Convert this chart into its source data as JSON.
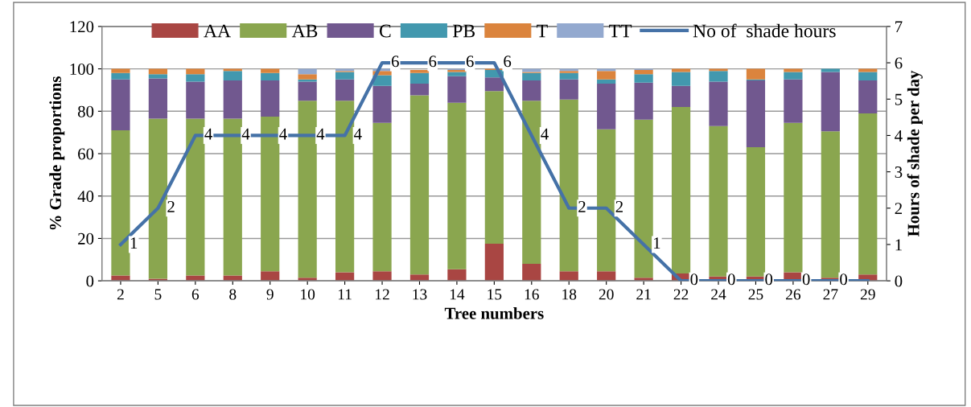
{
  "chart_data": {
    "type": "bar",
    "stacked": true,
    "xlabel": "Tree numbers",
    "ylabel": "% Grade proportions",
    "y2label": "Hours of shade per day",
    "categories": [
      "2",
      "5",
      "6",
      "8",
      "9",
      "10",
      "11",
      "12",
      "13",
      "14",
      "15",
      "16",
      "18",
      "20",
      "21",
      "22",
      "24",
      "25",
      "26",
      "27",
      "29"
    ],
    "series": [
      {
        "name": "AA",
        "color": "#a94643",
        "values": [
          2.5,
          1,
          2.5,
          2.5,
          4.5,
          1.5,
          4,
          4.5,
          3,
          5.5,
          17.5,
          8,
          4.5,
          4.5,
          1.5,
          3.5,
          2,
          2,
          4,
          1.5,
          3
        ]
      },
      {
        "name": "AB",
        "color": "#8aa64f",
        "values": [
          68.5,
          75.5,
          74,
          74,
          73,
          83.5,
          81,
          70,
          84.5,
          78.5,
          72,
          77,
          81,
          67,
          74.5,
          78.5,
          71,
          61,
          70.5,
          69,
          76
        ]
      },
      {
        "name": "C",
        "color": "#71588f",
        "values": [
          24,
          19,
          17.5,
          18,
          17,
          9,
          10,
          17.5,
          5.5,
          12.5,
          6.5,
          9.5,
          9.5,
          21.5,
          17.5,
          10,
          21,
          31.5,
          20.5,
          28,
          15.5
        ]
      },
      {
        "name": "PB",
        "color": "#4298ae",
        "values": [
          3,
          2,
          3.5,
          4.5,
          3.5,
          1,
          3.5,
          5,
          5,
          2,
          3.5,
          3.5,
          3,
          2,
          4,
          6.5,
          5,
          0.5,
          3.5,
          1.5,
          4
        ]
      },
      {
        "name": "T",
        "color": "#db843d",
        "values": [
          2,
          2.5,
          2.5,
          1,
          2,
          2.5,
          0.5,
          2,
          1.5,
          1,
          0.5,
          0.5,
          1,
          4,
          2,
          1.5,
          1,
          5,
          1.5,
          0,
          1.5
        ]
      },
      {
        "name": "TT",
        "color": "#93a9cf",
        "values": [
          0,
          0,
          0,
          0,
          0,
          2.5,
          1,
          1,
          0,
          0.5,
          0,
          1.5,
          1,
          1,
          0.5,
          0,
          0,
          0,
          0,
          0,
          0
        ]
      },
      {
        "name": "No of  shade hours",
        "type": "line",
        "axis": "y2",
        "color": "#4572a7",
        "values": [
          1,
          2,
          4,
          4,
          4,
          4,
          4,
          6,
          6,
          6,
          6,
          4,
          2,
          2,
          1,
          0,
          0,
          0,
          0,
          0,
          0
        ],
        "value_labels": [
          "1",
          "2",
          "4",
          "4",
          "4",
          "4",
          "4",
          "6",
          "6",
          "6",
          "6",
          "4",
          "2",
          "2",
          "1",
          "0",
          "0",
          "0",
          "0",
          "0",
          null
        ]
      }
    ],
    "ylim": [
      0,
      120
    ],
    "yticks": [
      0,
      20,
      40,
      60,
      80,
      100,
      120
    ],
    "y2lim": [
      0,
      7
    ],
    "y2ticks": [
      0,
      1,
      2,
      3,
      4,
      5,
      6,
      7
    ],
    "grid": "y",
    "legend": "top",
    "marker": "none"
  }
}
